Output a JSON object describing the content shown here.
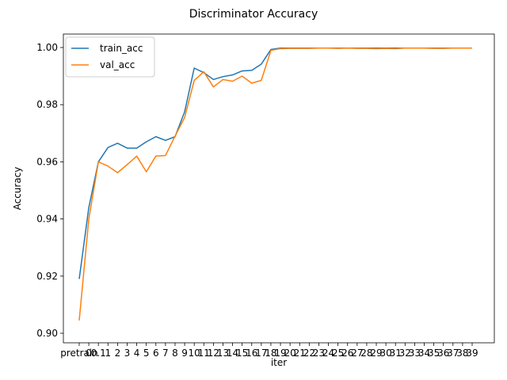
{
  "chart_data": {
    "type": "line",
    "title": "Discriminator Accuracy",
    "xlabel": "iter",
    "ylabel": "Accuracy",
    "categories": [
      "pretrain",
      "0",
      "0.1",
      "1",
      "2",
      "3",
      "4",
      "5",
      "6",
      "7",
      "8",
      "9",
      "10",
      "11",
      "12",
      "13",
      "14",
      "15",
      "16",
      "17",
      "18",
      "19",
      "20",
      "21",
      "22",
      "23",
      "24",
      "25",
      "26",
      "27",
      "28",
      "29",
      "30",
      "31",
      "32",
      "33",
      "34",
      "35",
      "36",
      "37",
      "38",
      "39"
    ],
    "series": [
      {
        "name": "train_acc",
        "color": "#1f77b4",
        "values": [
          0.919,
          0.944,
          0.96,
          0.965,
          0.9665,
          0.9648,
          0.9648,
          0.967,
          0.9688,
          0.9675,
          0.9688,
          0.9775,
          0.9928,
          0.9912,
          0.9888,
          0.9898,
          0.9904,
          0.9918,
          0.992,
          0.9942,
          0.9993,
          0.9998,
          0.9998,
          0.9998,
          0.9998,
          0.9998,
          0.9998,
          0.9998,
          0.9998,
          0.9998,
          0.9998,
          0.9998,
          0.9998,
          0.9998,
          0.9998,
          0.9998,
          0.9998,
          0.9998,
          0.9998,
          0.9998,
          0.9998,
          0.9998
        ]
      },
      {
        "name": "val_acc",
        "color": "#ff7f0e",
        "values": [
          0.9045,
          0.94,
          0.96,
          0.9585,
          0.9562,
          0.959,
          0.962,
          0.9565,
          0.962,
          0.9622,
          0.969,
          0.9755,
          0.9885,
          0.9915,
          0.9862,
          0.9888,
          0.9882,
          0.99,
          0.9875,
          0.9885,
          0.999,
          0.9996,
          0.9997,
          0.9997,
          0.9997,
          0.9998,
          0.9998,
          0.9997,
          0.9998,
          0.9997,
          0.9997,
          0.9996,
          0.9997,
          0.9996,
          0.9998,
          0.9998,
          0.9998,
          0.9997,
          0.9997,
          0.9998,
          0.9998,
          0.9998
        ]
      }
    ],
    "yticks": [
      "0.90",
      "0.92",
      "0.94",
      "0.96",
      "0.98",
      "1.00"
    ],
    "ylim": [
      0.9,
      1.0
    ],
    "grid": false,
    "legend_position": "top-left"
  }
}
